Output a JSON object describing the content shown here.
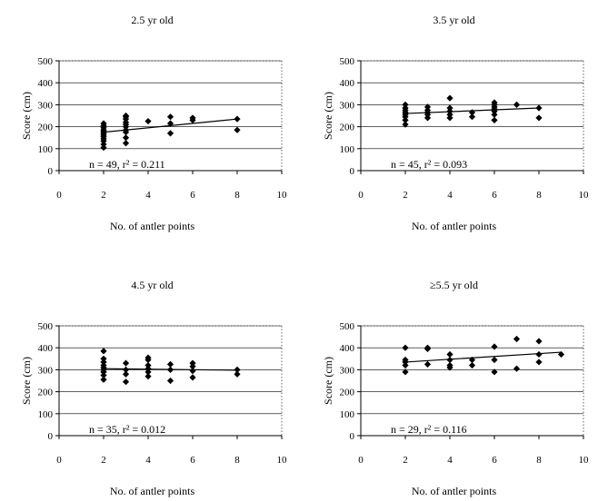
{
  "chart_data": [
    {
      "type": "scatter",
      "title": "2.5 yr old",
      "xlabel": "No. of antler points",
      "ylabel": "Score (cm)",
      "xlim": [
        0,
        10
      ],
      "ylim": [
        0,
        500
      ],
      "xticks": [
        "0",
        "2",
        "4",
        "6",
        "8",
        "10"
      ],
      "yticks": [
        "0",
        "100",
        "200",
        "300",
        "400",
        "500"
      ],
      "grid": true,
      "annotation": "n = 49, r² = 0.211",
      "trendline": [
        [
          2,
          175
        ],
        [
          8,
          235
        ]
      ],
      "points": [
        [
          2,
          105
        ],
        [
          2,
          120
        ],
        [
          2,
          135
        ],
        [
          2,
          145
        ],
        [
          2,
          155
        ],
        [
          2,
          162
        ],
        [
          2,
          170
        ],
        [
          2,
          178
        ],
        [
          2,
          185
        ],
        [
          2,
          195
        ],
        [
          2,
          205
        ],
        [
          2,
          215
        ],
        [
          3,
          125
        ],
        [
          3,
          150
        ],
        [
          3,
          175
        ],
        [
          3,
          185
        ],
        [
          3,
          200
        ],
        [
          3,
          210
        ],
        [
          3,
          220
        ],
        [
          3,
          235
        ],
        [
          3,
          245
        ],
        [
          3,
          250
        ],
        [
          4,
          225
        ],
        [
          5,
          170
        ],
        [
          5,
          215
        ],
        [
          5,
          245
        ],
        [
          6,
          230
        ],
        [
          6,
          240
        ],
        [
          8,
          185
        ],
        [
          8,
          235
        ]
      ]
    },
    {
      "type": "scatter",
      "title": "3.5 yr old",
      "xlabel": "No. of antler points",
      "ylabel": "Score (cm)",
      "xlim": [
        0,
        10
      ],
      "ylim": [
        0,
        500
      ],
      "xticks": [
        "0",
        "2",
        "4",
        "6",
        "8",
        "10"
      ],
      "yticks": [
        "0",
        "100",
        "200",
        "300",
        "400",
        "500"
      ],
      "grid": true,
      "annotation": "n = 45, r² = 0.093",
      "trendline": [
        [
          2,
          260
        ],
        [
          8,
          285
        ]
      ],
      "points": [
        [
          2,
          210
        ],
        [
          2,
          230
        ],
        [
          2,
          245
        ],
        [
          2,
          255
        ],
        [
          2,
          265
        ],
        [
          2,
          275
        ],
        [
          2,
          285
        ],
        [
          2,
          300
        ],
        [
          3,
          240
        ],
        [
          3,
          255
        ],
        [
          3,
          265
        ],
        [
          3,
          275
        ],
        [
          3,
          290
        ],
        [
          4,
          240
        ],
        [
          4,
          255
        ],
        [
          4,
          270
        ],
        [
          4,
          285
        ],
        [
          4,
          330
        ],
        [
          5,
          245
        ],
        [
          5,
          265
        ],
        [
          6,
          230
        ],
        [
          6,
          255
        ],
        [
          6,
          270
        ],
        [
          6,
          280
        ],
        [
          6,
          290
        ],
        [
          6,
          300
        ],
        [
          6,
          310
        ],
        [
          7,
          300
        ],
        [
          8,
          240
        ],
        [
          8,
          285
        ]
      ]
    },
    {
      "type": "scatter",
      "title": "4.5 yr old",
      "xlabel": "No. of antler points",
      "ylabel": "Score (cm)",
      "xlim": [
        0,
        10
      ],
      "ylim": [
        0,
        500
      ],
      "xticks": [
        "0",
        "2",
        "4",
        "6",
        "8",
        "10"
      ],
      "yticks": [
        "0",
        "100",
        "200",
        "300",
        "400",
        "500"
      ],
      "grid": true,
      "annotation": "n = 35, r² = 0.012",
      "trendline": [
        [
          2,
          305
        ],
        [
          8,
          298
        ]
      ],
      "points": [
        [
          2,
          255
        ],
        [
          2,
          275
        ],
        [
          2,
          290
        ],
        [
          2,
          300
        ],
        [
          2,
          310
        ],
        [
          2,
          320
        ],
        [
          2,
          335
        ],
        [
          2,
          350
        ],
        [
          2,
          385
        ],
        [
          3,
          245
        ],
        [
          3,
          280
        ],
        [
          3,
          300
        ],
        [
          3,
          330
        ],
        [
          4,
          270
        ],
        [
          4,
          290
        ],
        [
          4,
          305
        ],
        [
          4,
          320
        ],
        [
          4,
          345
        ],
        [
          4,
          355
        ],
        [
          5,
          250
        ],
        [
          5,
          300
        ],
        [
          5,
          325
        ],
        [
          6,
          265
        ],
        [
          6,
          295
        ],
        [
          6,
          315
        ],
        [
          6,
          330
        ],
        [
          8,
          280
        ],
        [
          8,
          300
        ]
      ]
    },
    {
      "type": "scatter",
      "title": "≥5.5 yr old",
      "xlabel": "No. of antler points",
      "ylabel": "Score (cm)",
      "xlim": [
        0,
        10
      ],
      "ylim": [
        0,
        500
      ],
      "xticks": [
        "0",
        "2",
        "4",
        "6",
        "8",
        "10"
      ],
      "yticks": [
        "0",
        "100",
        "200",
        "300",
        "400",
        "500"
      ],
      "grid": true,
      "annotation": "n = 29, r² = 0.116",
      "trendline": [
        [
          2,
          335
        ],
        [
          9,
          380
        ]
      ],
      "points": [
        [
          2,
          290
        ],
        [
          2,
          320
        ],
        [
          2,
          335
        ],
        [
          2,
          345
        ],
        [
          2,
          400
        ],
        [
          3,
          325
        ],
        [
          3,
          395
        ],
        [
          3,
          400
        ],
        [
          4,
          310
        ],
        [
          4,
          320
        ],
        [
          4,
          345
        ],
        [
          4,
          370
        ],
        [
          5,
          320
        ],
        [
          5,
          345
        ],
        [
          6,
          290
        ],
        [
          6,
          345
        ],
        [
          6,
          405
        ],
        [
          7,
          305
        ],
        [
          7,
          440
        ],
        [
          8,
          335
        ],
        [
          8,
          370
        ],
        [
          8,
          430
        ],
        [
          9,
          370
        ]
      ]
    }
  ]
}
